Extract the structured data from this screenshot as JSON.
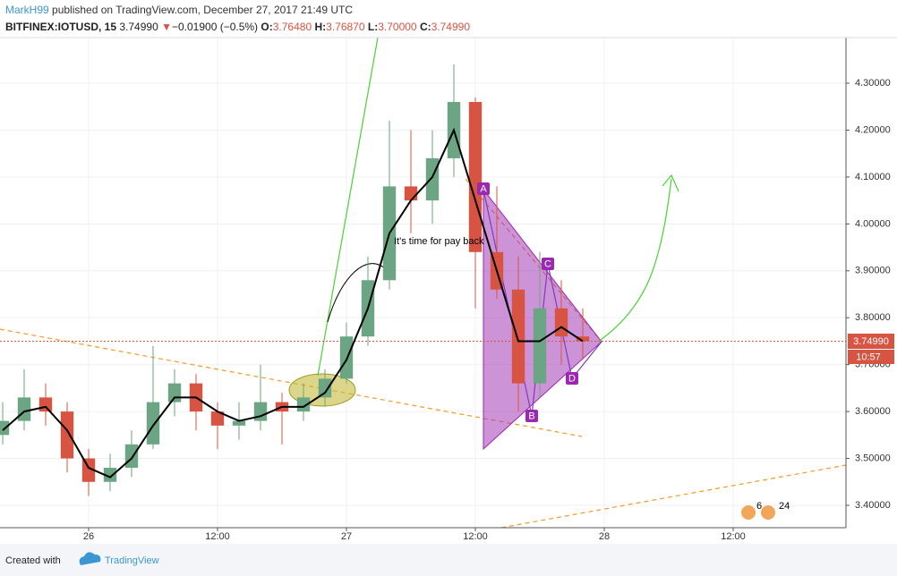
{
  "chart_data": {
    "type": "candlestick",
    "header": {
      "author": "MarkH99",
      "published": "published on TradingView.com, December 27, 2017 21:49 UTC",
      "symbol": "BITFINEX:IOTUSD, 15",
      "last": "3.74990",
      "arrow": "▼",
      "change": "−0.01900 (−0.5%)",
      "o_label": "O:",
      "o": "3.76480",
      "h_label": "H:",
      "h": "3.76870",
      "l_label": "L:",
      "l": "3.70000",
      "c_label": "C:",
      "c": "3.74990"
    },
    "annotation": "It's time for pay back",
    "pattern_points": [
      "A",
      "B",
      "C",
      "D"
    ],
    "price_tag": {
      "value": 3.7499,
      "label": "3.74990"
    },
    "countdown": "10:57",
    "events": [
      "6",
      "24"
    ],
    "footer": {
      "created": "Created with",
      "brand": "TradingView"
    },
    "x": [
      -8,
      -6,
      -4,
      -2,
      0,
      2,
      4,
      6,
      8,
      10,
      12,
      14,
      16,
      18,
      20,
      22,
      24,
      26,
      28,
      30,
      32,
      34,
      36,
      38,
      40,
      42,
      44,
      46
    ],
    "open": [
      3.55,
      3.58,
      3.63,
      3.6,
      3.5,
      3.45,
      3.48,
      3.53,
      3.62,
      3.66,
      3.6,
      3.57,
      3.58,
      3.62,
      3.6,
      3.63,
      3.67,
      3.76,
      3.88,
      4.08,
      4.05,
      4.14,
      4.26,
      3.94,
      3.86,
      3.66,
      3.82,
      3.76
    ],
    "high": [
      3.62,
      3.69,
      3.66,
      3.62,
      3.52,
      3.51,
      3.56,
      3.74,
      3.69,
      3.68,
      3.62,
      3.62,
      3.7,
      3.64,
      3.66,
      3.69,
      3.79,
      3.93,
      4.22,
      4.2,
      4.2,
      4.34,
      4.27,
      4.08,
      3.93,
      3.94,
      3.88,
      3.82
    ],
    "low": [
      3.53,
      3.56,
      3.57,
      3.47,
      3.42,
      3.43,
      3.46,
      3.52,
      3.59,
      3.56,
      3.52,
      3.54,
      3.56,
      3.53,
      3.58,
      3.61,
      3.66,
      3.74,
      3.86,
      3.98,
      4.0,
      4.1,
      3.82,
      3.84,
      3.6,
      3.63,
      3.7,
      3.71
    ],
    "close": [
      3.58,
      3.63,
      3.6,
      3.5,
      3.45,
      3.48,
      3.53,
      3.62,
      3.66,
      3.6,
      3.57,
      3.58,
      3.62,
      3.6,
      3.63,
      3.67,
      3.76,
      3.88,
      4.08,
      4.05,
      4.14,
      4.26,
      3.94,
      3.86,
      3.66,
      3.82,
      3.76,
      3.75
    ],
    "ma": [
      3.56,
      3.6,
      3.61,
      3.56,
      3.48,
      3.46,
      3.5,
      3.57,
      3.63,
      3.63,
      3.6,
      3.58,
      3.59,
      3.61,
      3.61,
      3.64,
      3.71,
      3.82,
      3.98,
      4.05,
      4.1,
      4.2,
      4.05,
      3.9,
      3.75,
      3.75,
      3.78,
      3.75
    ],
    "up_color": "#6ba583",
    "down_color": "#d75442",
    "ma_color": "#000000",
    "xlim": [
      -8.25,
      70.5
    ],
    "xticks": [
      {
        "value": 0,
        "label": "26"
      },
      {
        "value": 12,
        "label": "12:00"
      },
      {
        "value": 24,
        "label": "27"
      },
      {
        "value": 36,
        "label": "12:00"
      },
      {
        "value": 48,
        "label": "28"
      },
      {
        "value": 60,
        "label": "12:00"
      }
    ],
    "ylim": [
      3.3523,
      4.3973
    ],
    "yticks": [
      {
        "value": 3.4,
        "label": "3.40000"
      },
      {
        "value": 3.5,
        "label": "3.50000"
      },
      {
        "value": 3.6,
        "label": "3.60000"
      },
      {
        "value": 3.7,
        "label": "3.70000"
      },
      {
        "value": 3.8,
        "label": "3.80000"
      },
      {
        "value": 3.9,
        "label": "3.90000"
      },
      {
        "value": 4.0,
        "label": "4.00000"
      },
      {
        "value": 4.1,
        "label": "4.10000"
      },
      {
        "value": 4.2,
        "label": "4.20000"
      },
      {
        "value": 4.3,
        "label": "4.30000"
      }
    ],
    "grid": true
  }
}
